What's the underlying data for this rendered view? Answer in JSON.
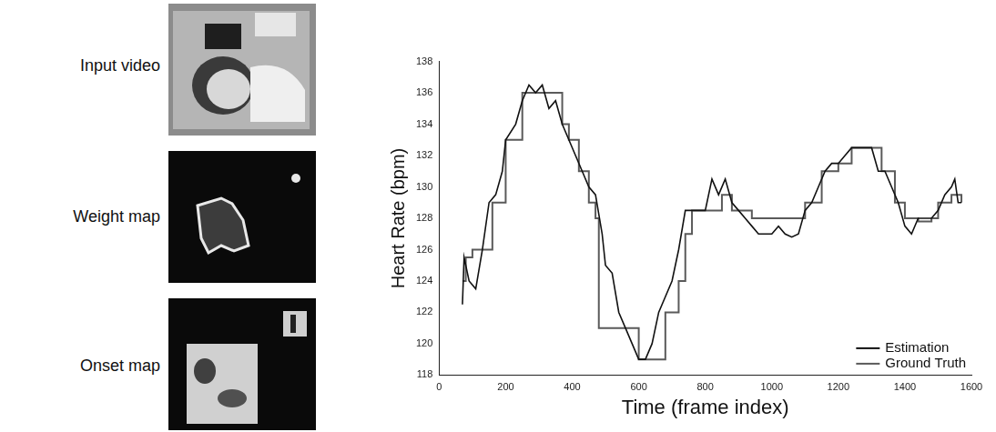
{
  "image_panels": {
    "labels": [
      "Input video",
      "Weight map",
      "Onset map"
    ]
  },
  "chart_data": {
    "type": "line",
    "x_label": "Time (frame index)",
    "y_label": "Heart Rate (bpm)",
    "xlim": [
      0,
      1600
    ],
    "xticks": [
      0,
      200,
      400,
      600,
      800,
      1000,
      1200,
      1400,
      1600
    ],
    "ylim": [
      118,
      138
    ],
    "yticks": [
      118,
      120,
      122,
      124,
      126,
      128,
      130,
      132,
      134,
      136,
      138
    ],
    "grid": false,
    "legend": "lower right",
    "series": [
      {
        "name": "Estimation",
        "color": "#111111",
        "line_style": "solid",
        "x": [
          70,
          75,
          90,
          110,
          130,
          150,
          170,
          190,
          200,
          230,
          250,
          270,
          290,
          310,
          330,
          350,
          370,
          390,
          410,
          430,
          450,
          470,
          490,
          500,
          520,
          540,
          560,
          580,
          600,
          620,
          640,
          660,
          680,
          700,
          720,
          740,
          760,
          780,
          800,
          820,
          840,
          860,
          880,
          900,
          920,
          940,
          960,
          980,
          1000,
          1020,
          1040,
          1060,
          1080,
          1100,
          1120,
          1140,
          1160,
          1180,
          1200,
          1220,
          1240,
          1260,
          1280,
          1300,
          1320,
          1340,
          1360,
          1380,
          1400,
          1420,
          1440,
          1460,
          1480,
          1500,
          1520,
          1540,
          1550,
          1560,
          1570
        ],
        "values": [
          122.5,
          125.5,
          124,
          123.5,
          126,
          129,
          129.5,
          131,
          133,
          134,
          135.5,
          136.5,
          136,
          136.5,
          135,
          135.5,
          134,
          133,
          132,
          131,
          130,
          129.5,
          127,
          125,
          124.5,
          122,
          121,
          120,
          119,
          119,
          120,
          122,
          123,
          124,
          126,
          128.5,
          128.5,
          128.5,
          128.5,
          130.5,
          129.5,
          130.5,
          129,
          128.5,
          128,
          127.5,
          127,
          127,
          127,
          127.5,
          127,
          126.8,
          127,
          128.5,
          129,
          130,
          131,
          131.5,
          131.5,
          132,
          132.5,
          132.5,
          132.5,
          132.5,
          131,
          131,
          130,
          129,
          127.5,
          127,
          128,
          128,
          128,
          128.5,
          129.5,
          130,
          130.5,
          129,
          129
        ]
      },
      {
        "name": "Ground Truth",
        "color": "#5a5a5a",
        "line_style": "steps",
        "x": [
          70,
          80,
          100,
          160,
          200,
          250,
          350,
          370,
          390,
          420,
          450,
          470,
          480,
          580,
          600,
          660,
          680,
          720,
          740,
          760,
          840,
          850,
          880,
          940,
          1000,
          1100,
          1150,
          1200,
          1240,
          1300,
          1330,
          1370,
          1400,
          1440,
          1480,
          1500,
          1540,
          1570
        ],
        "values": [
          124,
          125.5,
          126,
          129,
          133,
          136,
          136,
          134,
          133,
          131,
          129,
          128,
          121,
          121,
          119,
          119,
          122,
          124,
          127,
          128.5,
          128.5,
          129.5,
          128.5,
          128,
          128,
          129,
          131,
          131.5,
          132.5,
          132.5,
          131,
          129,
          128,
          127.8,
          128,
          129,
          129.5,
          129
        ]
      }
    ]
  }
}
